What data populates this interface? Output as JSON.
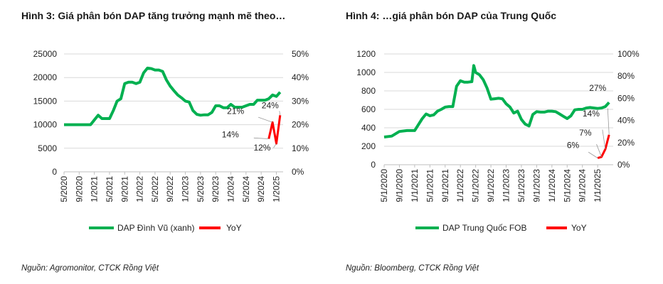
{
  "chart_data": [
    {
      "type": "line",
      "title": "Hình 3: Giá phân bón DAP tăng trưởng mạnh mẽ theo…",
      "source": "Nguồn: Agromonitor, CTCK Rồng Việt",
      "x_unit": "months since 5/2020",
      "x_tick_labels": [
        "5/2020",
        "9/2020",
        "1/2021",
        "5/2021",
        "9/2021",
        "1/2022",
        "5/2022",
        "9/2022",
        "1/2023",
        "5/2023",
        "9/2023",
        "1/2024",
        "5/2024",
        "9/2024",
        "1/2025"
      ],
      "y_left": {
        "range": [
          0,
          25000
        ],
        "ticks": [
          "0",
          "5000",
          "10000",
          "15000",
          "20000",
          "25000"
        ]
      },
      "y_right": {
        "range": [
          0,
          50
        ],
        "ticks": [
          "0%",
          "10%",
          "20%",
          "30%",
          "40%",
          "50%"
        ]
      },
      "grid": true,
      "legend_position": "bottom",
      "series": [
        {
          "name": "DAP Đình Vũ (xanh)",
          "axis": "left",
          "color": "#00b050",
          "x": [
            0,
            7,
            9,
            10,
            12,
            13,
            14,
            15,
            16,
            17,
            18,
            19,
            20,
            21,
            22,
            23,
            24,
            25,
            26,
            27,
            28,
            29,
            30,
            31,
            32,
            33,
            34,
            35,
            36,
            37,
            38,
            39,
            40,
            41,
            42,
            43,
            44,
            45,
            46,
            47,
            48,
            49,
            50,
            51,
            52,
            53,
            54,
            55,
            56,
            57
          ],
          "y": [
            10000,
            10000,
            12000,
            11300,
            11300,
            13000,
            15000,
            15500,
            18700,
            19000,
            19000,
            18700,
            19000,
            21000,
            22000,
            21900,
            21600,
            21600,
            21300,
            19500,
            18200,
            17200,
            16300,
            15700,
            15000,
            14800,
            13000,
            12200,
            12000,
            12100,
            12100,
            12600,
            14000,
            14000,
            13600,
            13600,
            14300,
            13700,
            13700,
            13700,
            14000,
            14300,
            14300,
            15200,
            15200,
            15200,
            15500,
            16300,
            16000,
            16900
          ]
        },
        {
          "name": "YoY",
          "axis": "right",
          "color": "#ff0000",
          "x": [
            54,
            55,
            56,
            57
          ],
          "y": [
            14,
            21,
            12,
            24
          ],
          "labels": [
            "14%",
            "21%",
            "12%",
            "24%"
          ]
        }
      ]
    },
    {
      "type": "line",
      "title": "Hình 4: …giá phân bón DAP của Trung Quốc",
      "source": "Nguồn: Bloomberg, CTCK Rồng Việt",
      "x_unit": "months since 5/1/2020",
      "x_tick_labels": [
        "5/1/2020",
        "9/1/2020",
        "1/1/2021",
        "5/1/2021",
        "9/1/2021",
        "1/1/2022",
        "5/1/2022",
        "9/1/2022",
        "1/1/2023",
        "5/1/2023",
        "9/1/2023",
        "1/1/2024",
        "5/1/2024",
        "9/1/2024",
        "1/1/2025"
      ],
      "y_left": {
        "range": [
          0,
          1200
        ],
        "ticks": [
          "0",
          "200",
          "400",
          "600",
          "800",
          "1000",
          "1200"
        ]
      },
      "y_right": {
        "range": [
          0,
          100
        ],
        "ticks": [
          "0%",
          "20%",
          "40%",
          "60%",
          "80%",
          "100%"
        ]
      },
      "grid": true,
      "legend_position": "bottom",
      "series": [
        {
          "name": "DAP Trung Quốc FOB",
          "axis": "left",
          "color": "#00b050",
          "x": [
            0,
            2,
            4,
            6,
            8,
            10,
            11,
            12,
            13,
            14,
            15,
            16,
            17,
            18,
            19,
            20,
            21,
            22,
            23,
            23.5,
            24,
            25,
            26,
            27,
            28,
            29,
            30,
            31,
            32,
            33,
            34,
            35,
            36,
            37,
            38,
            39,
            40,
            41,
            42,
            43,
            44,
            45,
            46,
            47,
            48,
            49,
            50,
            51,
            52,
            53,
            54,
            55,
            56,
            57,
            58,
            59
          ],
          "y": [
            300,
            310,
            360,
            370,
            370,
            500,
            550,
            530,
            540,
            580,
            600,
            625,
            630,
            630,
            850,
            910,
            895,
            895,
            900,
            1075,
            1000,
            975,
            920,
            830,
            710,
            715,
            720,
            715,
            660,
            625,
            560,
            580,
            490,
            440,
            420,
            545,
            575,
            570,
            570,
            580,
            580,
            575,
            550,
            525,
            500,
            530,
            595,
            600,
            600,
            615,
            620,
            615,
            610,
            615,
            630,
            675
          ]
        },
        {
          "name": "YoY",
          "axis": "right",
          "color": "#ff0000",
          "x": [
            56,
            57,
            58,
            59
          ],
          "y": [
            6,
            7,
            14,
            27
          ],
          "labels": [
            "6%",
            "7%",
            "14%",
            "27%"
          ]
        }
      ]
    }
  ]
}
